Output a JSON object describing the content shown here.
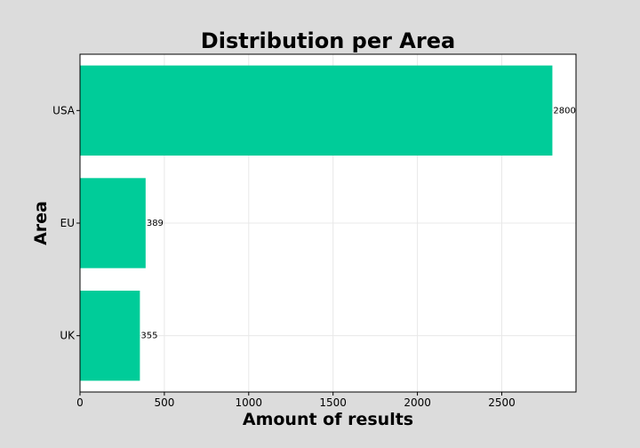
{
  "chart_data": {
    "type": "bar",
    "orientation": "horizontal",
    "title": "Distribution per Area",
    "xlabel": "Amount of results",
    "ylabel": "Area",
    "categories": [
      "USA",
      "EU",
      "UK"
    ],
    "values": [
      2800,
      389,
      355
    ],
    "data_labels": [
      "2800",
      "389",
      "355"
    ],
    "xlim": [
      0,
      2940
    ],
    "xticks": [
      0,
      500,
      1000,
      1500,
      2000,
      2500
    ],
    "grid": true,
    "bar_color": "#00cc99",
    "background_color": "#dcdcdc",
    "plot_background_color": "#ffffff"
  }
}
